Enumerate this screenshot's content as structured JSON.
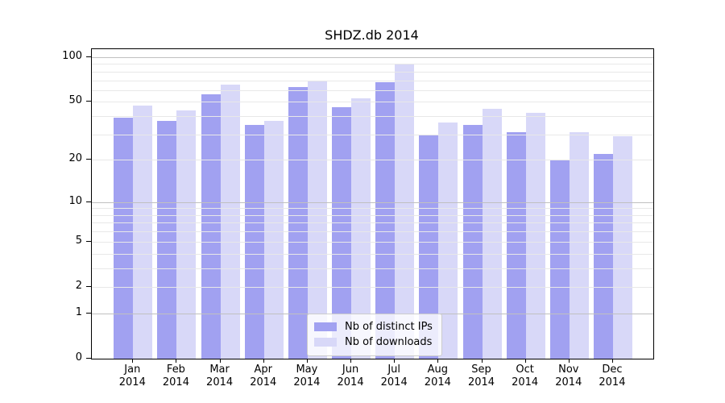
{
  "chart_data": {
    "type": "bar",
    "title": "SHDZ.db 2014",
    "categories": [
      "Jan",
      "Feb",
      "Mar",
      "Apr",
      "May",
      "Jun",
      "Jul",
      "Aug",
      "Sep",
      "Oct",
      "Nov",
      "Dec"
    ],
    "category_year_line": "2014",
    "series": [
      {
        "name": "Nb of distinct IPs",
        "color": "#a1a1f1",
        "values": [
          39,
          37,
          56,
          35,
          63,
          46,
          68,
          30,
          35,
          31,
          20,
          22
        ]
      },
      {
        "name": "Nb of downloads",
        "color": "#d8d8f8",
        "values": [
          47,
          44,
          65,
          37,
          70,
          53,
          91,
          36,
          45,
          42,
          31,
          29
        ]
      }
    ],
    "yscale": "log1p",
    "ylim": [
      0,
      113
    ],
    "ytick_values": [
      100,
      50,
      20,
      10,
      5,
      2,
      1,
      0
    ],
    "ytick_labels": [
      "100",
      "50",
      "20",
      "10",
      "5",
      "2",
      "1",
      "0"
    ],
    "major_gridline_values": [
      100,
      10,
      1
    ],
    "minor_gridline_values": [
      2,
      3,
      4,
      5,
      6,
      7,
      8,
      9,
      20,
      30,
      40,
      50,
      60,
      70,
      80,
      90
    ],
    "grid": true,
    "legend": {
      "position": "lower center",
      "items": [
        "Nb of distinct IPs",
        "Nb of downloads"
      ]
    },
    "colors": {
      "background": "#ffffff",
      "axis": "#000000",
      "major_grid": "#c0c0c0",
      "minor_grid": "#e8e8e8",
      "legend_border": "#cccccc",
      "series_distinct_ips": "#a1a1f1",
      "series_downloads": "#d8d8f8"
    }
  }
}
